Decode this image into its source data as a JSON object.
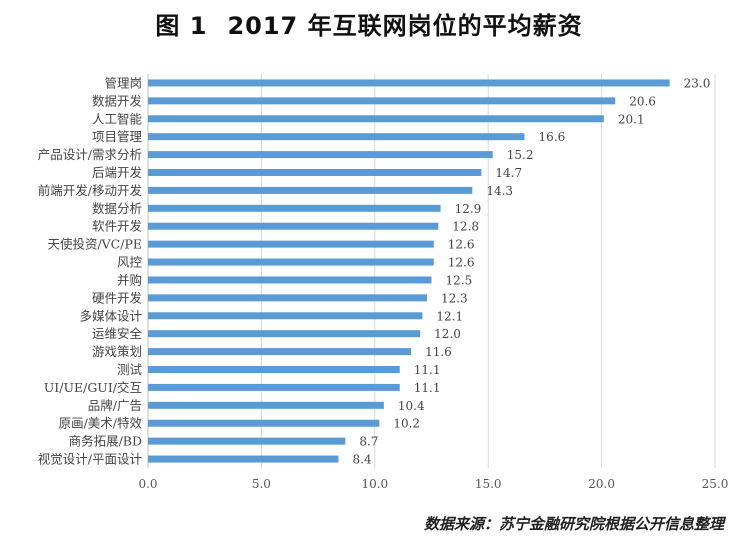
{
  "title_prefix": "图 1",
  "title_main": "2017 年互联网岗位的平均薪资",
  "source": "数据来源：苏宁金融研究院根据公开信息整理",
  "colors": {
    "bar": "#5B9BD5",
    "grid": "#d9d9d9",
    "axis": "#bfbfbf"
  },
  "chart_data": {
    "type": "bar",
    "orientation": "horizontal",
    "title": "2017 年互联网岗位的平均薪资",
    "categories": [
      "管理岗",
      "数据开发",
      "人工智能",
      "项目管理",
      "产品设计/需求分析",
      "后端开发",
      "前端开发/移动开发",
      "数据分析",
      "软件开发",
      "天使投资/VC/PE",
      "风控",
      "并购",
      "硬件开发",
      "多媒体设计",
      "运维安全",
      "游戏策划",
      "测试",
      "UI/UE/GUI/交互",
      "品牌/广告",
      "原画/美术/特效",
      "商务拓展/BD",
      "视觉设计/平面设计"
    ],
    "values": [
      23.0,
      20.6,
      20.1,
      16.6,
      15.2,
      14.7,
      14.3,
      12.9,
      12.8,
      12.6,
      12.6,
      12.5,
      12.3,
      12.1,
      12.0,
      11.6,
      11.1,
      11.1,
      10.4,
      10.2,
      8.7,
      8.4
    ],
    "value_labels": [
      "23.0",
      "20.6",
      "20.1",
      "16.6",
      "15.2",
      "14.7",
      "14.3",
      "12.9",
      "12.8",
      "12.6",
      "12.6",
      "12.5",
      "12.3",
      "12.1",
      "12.0",
      "11.6",
      "11.1",
      "11.1",
      "10.4",
      "10.2",
      "8.7",
      "8.4"
    ],
    "xlim": [
      0,
      25
    ],
    "xticks": [
      0,
      5,
      10,
      15,
      20,
      25
    ],
    "xtick_labels": [
      "0.0",
      "5.0",
      "10.0",
      "15.0",
      "20.0",
      "25.0"
    ],
    "grid": true
  }
}
